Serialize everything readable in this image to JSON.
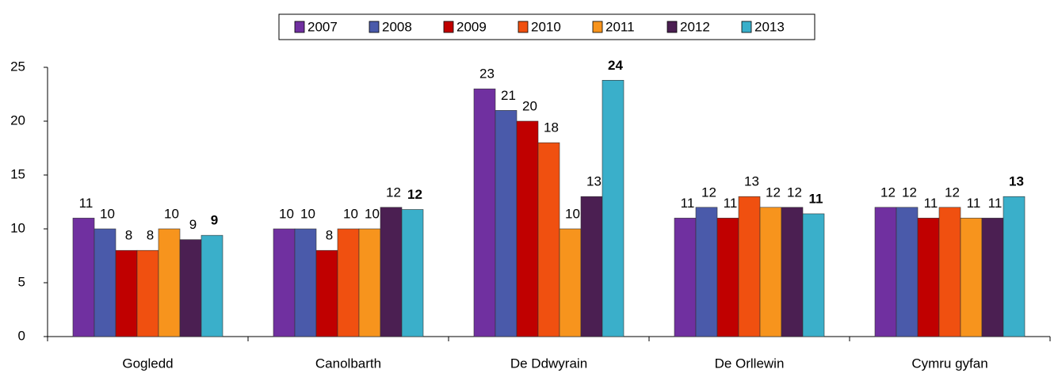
{
  "chart_data": {
    "type": "bar",
    "categories": [
      "Gogledd",
      "Canolbarth",
      "De Ddwyrain",
      "De Orllewin",
      "Cymru gyfan"
    ],
    "series": [
      {
        "name": "2007",
        "color": "#7030a0",
        "values": [
          11,
          10,
          23,
          11,
          12
        ]
      },
      {
        "name": "2008",
        "color": "#4a5aaa",
        "values": [
          10,
          10,
          21,
          12,
          12
        ]
      },
      {
        "name": "2009",
        "color": "#c00000",
        "values": [
          8,
          8,
          20,
          11,
          11
        ]
      },
      {
        "name": "2010",
        "color": "#f05010",
        "values": [
          8,
          10,
          18,
          13,
          12
        ]
      },
      {
        "name": "2011",
        "color": "#f7941d",
        "values": [
          10,
          10,
          10,
          12,
          11
        ]
      },
      {
        "name": "2012",
        "color": "#4b1f52",
        "values": [
          9,
          12,
          13,
          12,
          11
        ]
      },
      {
        "name": "2013",
        "color": "#3aafca",
        "values": [
          9.4,
          11.8,
          23.8,
          11.4,
          13
        ],
        "value_labels": [
          "9",
          "12",
          "24",
          "11",
          "13"
        ]
      }
    ],
    "ylim": [
      0,
      25
    ],
    "yticks": [
      0,
      5,
      10,
      15,
      20,
      25
    ],
    "grid": false,
    "legend": "top"
  }
}
